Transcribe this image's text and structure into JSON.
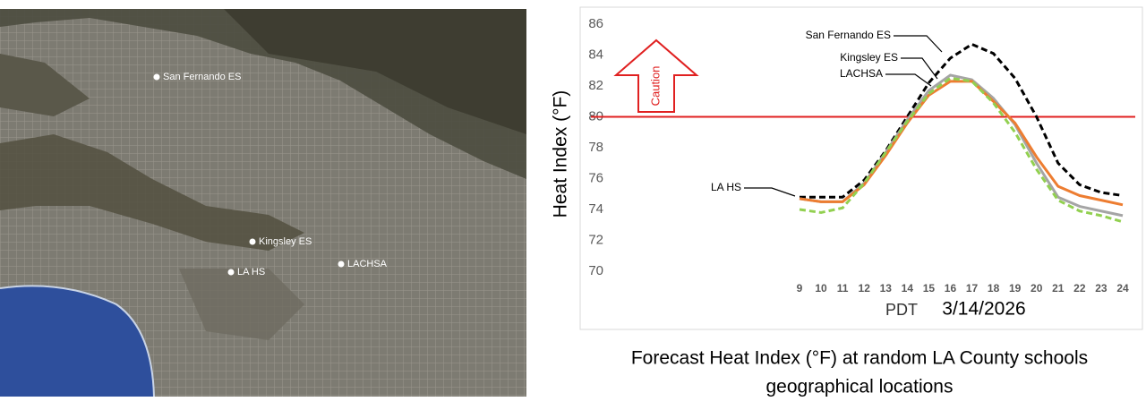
{
  "map_locations": [
    "San Fernando ES",
    "Kingsley ES",
    "LA HS",
    "LACHSA"
  ],
  "caption": [
    "Forecast Heat Index (°F) at random LA County schools",
    "geographical locations"
  ],
  "chart_data": {
    "type": "line",
    "ylabel": "Heat Index (°F)",
    "xlabel": "PDT",
    "date": "3/14/2026",
    "x": [
      9,
      10,
      11,
      12,
      13,
      14,
      15,
      16,
      17,
      18,
      19,
      20,
      21,
      22,
      23,
      24
    ],
    "xlim": [
      9,
      24
    ],
    "ylim": [
      70,
      86
    ],
    "yticks": [
      70,
      72,
      74,
      76,
      78,
      80,
      82,
      84,
      86
    ],
    "grid": false,
    "threshold": {
      "value": 80,
      "label": "Caution",
      "color": "#e02020"
    },
    "series": [
      {
        "name": "San Fernando ES",
        "color": "#000000",
        "dashed": true,
        "values": [
          74.8,
          74.8,
          74.8,
          75.9,
          77.8,
          80,
          82.2,
          83.8,
          84.7,
          84.1,
          82.5,
          80,
          77,
          75.6,
          75.1,
          74.9
        ]
      },
      {
        "name": "Kingsley ES",
        "color": "#a5a5a5",
        "dashed": false,
        "values": [
          74.7,
          74.5,
          74.5,
          75.7,
          77.7,
          79.8,
          81.7,
          82.7,
          82.4,
          81.2,
          79.5,
          77,
          74.8,
          74.2,
          73.9,
          73.6
        ]
      },
      {
        "name": "LACHSA",
        "color": "#ed7d31",
        "dashed": false,
        "values": [
          74.7,
          74.5,
          74.5,
          75.6,
          77.5,
          79.6,
          81.4,
          82.3,
          82.3,
          81,
          79.6,
          77.4,
          75.5,
          74.9,
          74.6,
          74.3
        ]
      },
      {
        "name": "LA HS",
        "color": "#92d050",
        "dashed": true,
        "values": [
          74,
          73.8,
          74.1,
          75.7,
          77.7,
          79.7,
          81.5,
          82.5,
          82.3,
          80.9,
          79,
          76.6,
          74.6,
          73.9,
          73.6,
          73.2
        ]
      }
    ]
  }
}
